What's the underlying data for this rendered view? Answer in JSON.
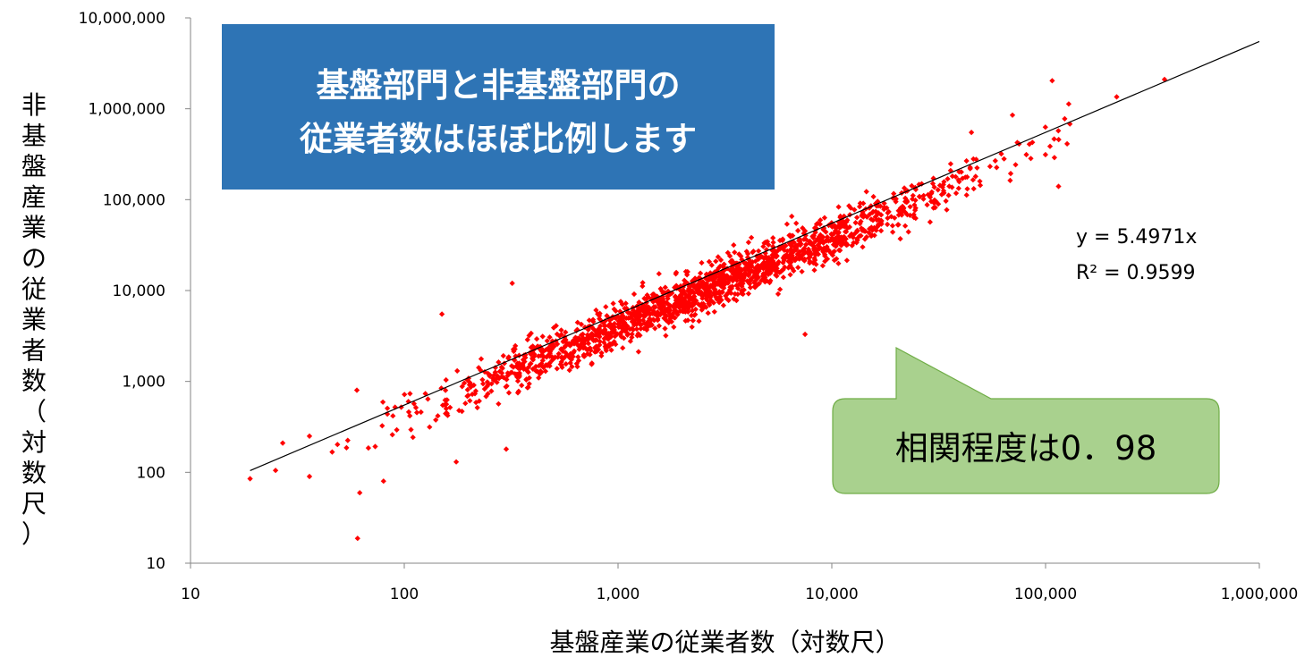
{
  "chart_data": {
    "type": "scatter",
    "log_scale": {
      "x": true,
      "y": true
    },
    "xlim": [
      10,
      1000000
    ],
    "ylim": [
      10,
      10000000
    ],
    "x_tick_values": [
      10,
      100,
      1000,
      10000,
      100000,
      1000000
    ],
    "x_tick_labels": [
      "10",
      "100",
      "1,000",
      "10,000",
      "100,000",
      "1,000,000"
    ],
    "y_tick_values": [
      10,
      100,
      1000,
      10000,
      100000,
      1000000,
      10000000
    ],
    "y_tick_labels": [
      "10",
      "100",
      "1,000",
      "10,000",
      "100,000",
      "1,000,000",
      "10,000,000"
    ],
    "xlabel": "基盤産業の従業者数（対数尺）",
    "ylabel": "非基盤産業の従業者数（対数尺）",
    "grid": false,
    "marker_color": "#ff0000",
    "trendline": {
      "x_range": [
        19,
        1000000
      ],
      "slope": 5.4971,
      "equation_label": "y = 5.4971x",
      "r2_label": "R² = 0.9599",
      "color": "#000000"
    },
    "callouts": {
      "title_lines": [
        "基盤部門と非基盤部門の",
        "従業者数はほぼ比例します"
      ],
      "title_fill": "#2e74b5",
      "note": "相関程度は0．98",
      "note_fill": "#a9d18e",
      "note_border": "#70ad47"
    },
    "point_cloud": {
      "count": 1700,
      "x_min": 19,
      "x_max": 365000,
      "log_x_mean": 3.4,
      "log_x_sd": 0.62,
      "log_y_mean": 4.0,
      "log_y_sd": 0.62,
      "relation": "y ≈ 5.4971·x with scatter (R² = 0.9599)",
      "highlighted_points": [
        {
          "x": 19,
          "y": 85
        },
        {
          "x": 25,
          "y": 105
        },
        {
          "x": 27,
          "y": 210
        },
        {
          "x": 36,
          "y": 90
        },
        {
          "x": 36,
          "y": 250
        },
        {
          "x": 60,
          "y": 800
        },
        {
          "x": 150,
          "y": 5500
        },
        {
          "x": 320,
          "y": 12000
        },
        {
          "x": 300,
          "y": 180
        },
        {
          "x": 175,
          "y": 130
        },
        {
          "x": 7500,
          "y": 3300
        },
        {
          "x": 45000,
          "y": 550000
        },
        {
          "x": 70000,
          "y": 850000
        },
        {
          "x": 115000,
          "y": 140000
        },
        {
          "x": 110000,
          "y": 290000
        },
        {
          "x": 130000,
          "y": 680000
        },
        {
          "x": 215000,
          "y": 1350000
        },
        {
          "x": 360000,
          "y": 2100000
        }
      ]
    }
  }
}
